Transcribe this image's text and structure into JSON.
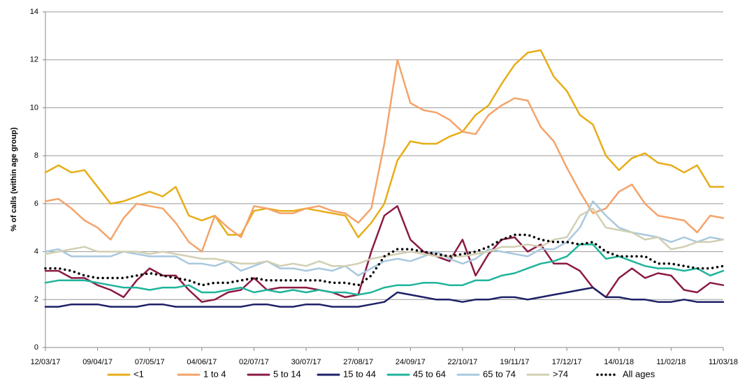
{
  "chart_data": {
    "type": "line",
    "y_label": "% of calls (within age group)",
    "x": [
      "12/03/17",
      "19/03/17",
      "26/03/17",
      "02/04/17",
      "09/04/17",
      "16/04/17",
      "23/04/17",
      "30/04/17",
      "07/05/17",
      "14/05/17",
      "21/05/17",
      "28/05/17",
      "04/06/17",
      "11/06/17",
      "18/06/17",
      "25/06/17",
      "02/07/17",
      "09/07/17",
      "16/07/17",
      "23/07/17",
      "30/07/17",
      "06/08/17",
      "13/08/17",
      "20/08/17",
      "27/08/17",
      "03/09/17",
      "10/09/17",
      "17/09/17",
      "24/09/17",
      "01/10/17",
      "08/10/17",
      "15/10/17",
      "22/10/17",
      "29/10/17",
      "05/11/17",
      "12/11/17",
      "19/11/17",
      "26/11/17",
      "03/12/17",
      "10/12/17",
      "17/12/17",
      "24/12/17",
      "31/12/17",
      "07/01/18",
      "14/01/18",
      "21/01/18",
      "28/01/18",
      "04/02/18",
      "11/02/18",
      "18/02/18",
      "25/02/18",
      "04/03/18",
      "11/03/18"
    ],
    "xticks": [
      "12/03/17",
      "09/04/17",
      "07/05/17",
      "04/06/17",
      "02/07/17",
      "30/07/17",
      "27/08/17",
      "24/09/17",
      "22/10/17",
      "19/11/17",
      "17/12/17",
      "14/01/18",
      "11/02/18",
      "11/03/18"
    ],
    "ylim": [
      0,
      14
    ],
    "yticks": [
      0,
      2,
      4,
      6,
      8,
      10,
      12,
      14
    ],
    "grid": true,
    "legend": "bottom",
    "series": [
      {
        "name": "<1",
        "color": "#e7ad17",
        "values": [
          7.3,
          7.6,
          7.3,
          7.4,
          6.7,
          6.0,
          6.1,
          6.3,
          6.5,
          6.3,
          6.7,
          5.5,
          5.3,
          5.5,
          4.7,
          4.7,
          5.7,
          5.8,
          5.7,
          5.7,
          5.8,
          5.7,
          5.6,
          5.5,
          4.6,
          5.2,
          6.0,
          7.8,
          8.6,
          8.5,
          8.5,
          8.8,
          9.0,
          9.7,
          10.1,
          11.0,
          11.8,
          12.3,
          12.4,
          11.3,
          10.7,
          9.7,
          9.3,
          8.0,
          7.4,
          7.9,
          8.1,
          7.7,
          7.6,
          7.3,
          7.6,
          6.7,
          6.7
        ]
      },
      {
        "name": "1 to 4",
        "color": "#f4a36a",
        "values": [
          6.1,
          6.2,
          5.8,
          5.3,
          5.0,
          4.5,
          5.4,
          6.0,
          5.9,
          5.8,
          5.2,
          4.4,
          4.0,
          5.5,
          5.0,
          4.6,
          5.9,
          5.8,
          5.6,
          5.6,
          5.8,
          5.9,
          5.7,
          5.6,
          5.2,
          5.8,
          8.5,
          12.0,
          10.2,
          9.9,
          9.8,
          9.5,
          9.0,
          8.9,
          9.7,
          10.1,
          10.4,
          10.3,
          9.2,
          8.6,
          7.5,
          6.5,
          5.6,
          5.8,
          6.5,
          6.8,
          6.0,
          5.5,
          5.4,
          5.3,
          4.8,
          5.5,
          5.4
        ]
      },
      {
        "name": "5 to 14",
        "color": "#8b1a45",
        "values": [
          3.2,
          3.2,
          2.9,
          2.9,
          2.6,
          2.4,
          2.1,
          2.8,
          3.3,
          3.0,
          3.0,
          2.4,
          1.9,
          2.0,
          2.3,
          2.4,
          2.9,
          2.4,
          2.5,
          2.5,
          2.5,
          2.4,
          2.3,
          2.1,
          2.2,
          4.0,
          5.5,
          5.9,
          4.5,
          4.0,
          3.8,
          3.6,
          4.5,
          3.0,
          3.9,
          4.5,
          4.6,
          4.0,
          4.3,
          3.5,
          3.5,
          3.2,
          2.5,
          2.1,
          2.9,
          3.3,
          2.9,
          3.1,
          3.0,
          2.4,
          2.3,
          2.7,
          2.6
        ]
      },
      {
        "name": "15 to 44",
        "color": "#1d2067",
        "values": [
          1.7,
          1.7,
          1.8,
          1.8,
          1.8,
          1.7,
          1.7,
          1.7,
          1.8,
          1.8,
          1.7,
          1.7,
          1.7,
          1.7,
          1.7,
          1.7,
          1.8,
          1.8,
          1.7,
          1.7,
          1.8,
          1.8,
          1.7,
          1.7,
          1.7,
          1.8,
          1.9,
          2.3,
          2.2,
          2.1,
          2.0,
          2.0,
          1.9,
          2.0,
          2.0,
          2.1,
          2.1,
          2.0,
          2.1,
          2.2,
          2.3,
          2.4,
          2.5,
          2.1,
          2.1,
          2.0,
          2.0,
          1.9,
          1.9,
          2.0,
          1.9,
          1.9,
          1.9
        ]
      },
      {
        "name": "45 to 64",
        "color": "#1fb49b",
        "values": [
          2.7,
          2.8,
          2.8,
          2.8,
          2.7,
          2.6,
          2.5,
          2.5,
          2.4,
          2.5,
          2.5,
          2.6,
          2.3,
          2.3,
          2.4,
          2.5,
          2.3,
          2.4,
          2.3,
          2.4,
          2.3,
          2.4,
          2.3,
          2.3,
          2.2,
          2.3,
          2.5,
          2.6,
          2.6,
          2.7,
          2.7,
          2.6,
          2.6,
          2.8,
          2.8,
          3.0,
          3.1,
          3.3,
          3.5,
          3.6,
          3.8,
          4.3,
          4.3,
          3.7,
          3.8,
          3.6,
          3.4,
          3.3,
          3.3,
          3.2,
          3.3,
          3.0,
          3.2
        ]
      },
      {
        "name": "65 to 74",
        "color": "#a9c8de",
        "values": [
          4.0,
          4.1,
          3.8,
          3.8,
          3.8,
          3.8,
          4.0,
          3.9,
          3.8,
          3.8,
          3.8,
          3.5,
          3.5,
          3.4,
          3.6,
          3.2,
          3.4,
          3.6,
          3.3,
          3.3,
          3.2,
          3.3,
          3.2,
          3.4,
          3.0,
          3.3,
          3.6,
          3.7,
          3.6,
          3.8,
          4.0,
          3.7,
          3.5,
          3.7,
          4.1,
          4.0,
          3.9,
          3.8,
          4.1,
          4.1,
          4.4,
          5.0,
          6.1,
          5.5,
          5.0,
          4.8,
          4.7,
          4.6,
          4.4,
          4.6,
          4.4,
          4.6,
          4.5
        ]
      },
      {
        "name": ">74",
        "color": "#d2cfb3",
        "values": [
          3.9,
          4.0,
          4.1,
          4.2,
          4.0,
          4.0,
          4.0,
          4.0,
          3.9,
          4.0,
          3.9,
          3.8,
          3.7,
          3.7,
          3.6,
          3.5,
          3.5,
          3.6,
          3.4,
          3.5,
          3.4,
          3.6,
          3.4,
          3.4,
          3.5,
          3.7,
          3.8,
          3.9,
          4.0,
          3.9,
          3.8,
          3.8,
          3.8,
          3.9,
          4.0,
          4.2,
          4.2,
          4.3,
          4.2,
          4.5,
          4.6,
          5.5,
          5.8,
          5.0,
          4.9,
          4.8,
          4.5,
          4.6,
          4.1,
          4.2,
          4.4,
          4.4,
          4.5
        ]
      },
      {
        "name": "All ages",
        "color": "#000000",
        "line_style": "dotted",
        "values": [
          3.3,
          3.3,
          3.2,
          3.0,
          2.9,
          2.9,
          2.9,
          3.0,
          3.1,
          3.0,
          2.9,
          2.8,
          2.6,
          2.7,
          2.7,
          2.8,
          2.9,
          2.8,
          2.8,
          2.8,
          2.8,
          2.8,
          2.7,
          2.7,
          2.6,
          3.0,
          3.8,
          4.1,
          4.1,
          4.0,
          3.9,
          3.8,
          3.9,
          4.0,
          4.2,
          4.5,
          4.7,
          4.7,
          4.5,
          4.4,
          4.4,
          4.3,
          4.4,
          4.0,
          3.8,
          3.8,
          3.8,
          3.5,
          3.5,
          3.4,
          3.3,
          3.3,
          3.4
        ]
      }
    ]
  }
}
